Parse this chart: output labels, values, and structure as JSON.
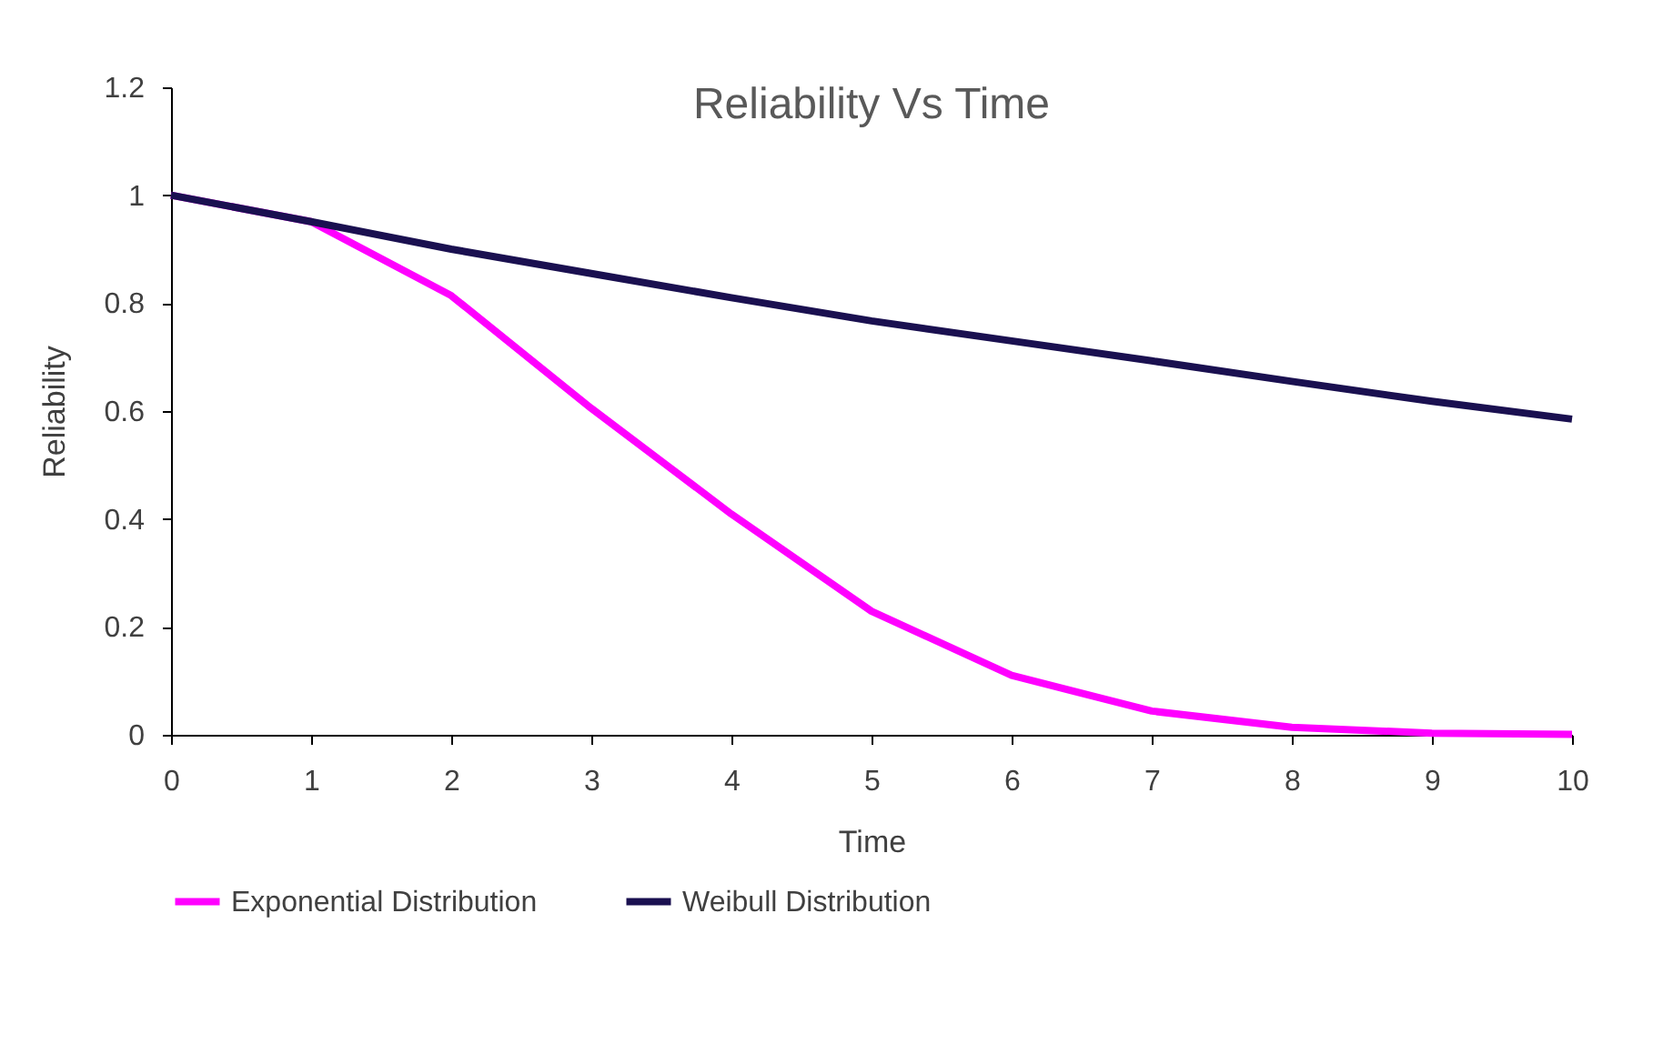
{
  "chart_data": {
    "type": "line",
    "title": "Reliability Vs Time",
    "xlabel": "Time",
    "ylabel": "Reliability",
    "x": [
      0,
      1,
      2,
      3,
      4,
      5,
      6,
      7,
      8,
      9,
      10
    ],
    "series": [
      {
        "name": "Exponential Distribution",
        "color": "#ff00ff",
        "values": [
          1,
          0.951,
          0.814,
          0.605,
          0.409,
          0.229,
          0.11,
          0.044,
          0.014,
          0.003,
          0.001
        ]
      },
      {
        "name": "Weibull Distribution",
        "color": "#1a1050",
        "values": [
          1,
          0.951,
          0.9,
          0.855,
          0.81,
          0.767,
          0.73,
          0.693,
          0.655,
          0.618,
          0.585
        ]
      }
    ],
    "xlim": [
      0,
      10
    ],
    "xticks": [
      0,
      1,
      2,
      3,
      4,
      5,
      6,
      7,
      8,
      9,
      10
    ],
    "ylim": [
      0,
      1.2
    ],
    "yticks": [
      0,
      0.2,
      0.4,
      0.6,
      0.8,
      1,
      1.2
    ],
    "grid": false,
    "legend": "bottom",
    "marker": "none",
    "line_style": "solid"
  }
}
